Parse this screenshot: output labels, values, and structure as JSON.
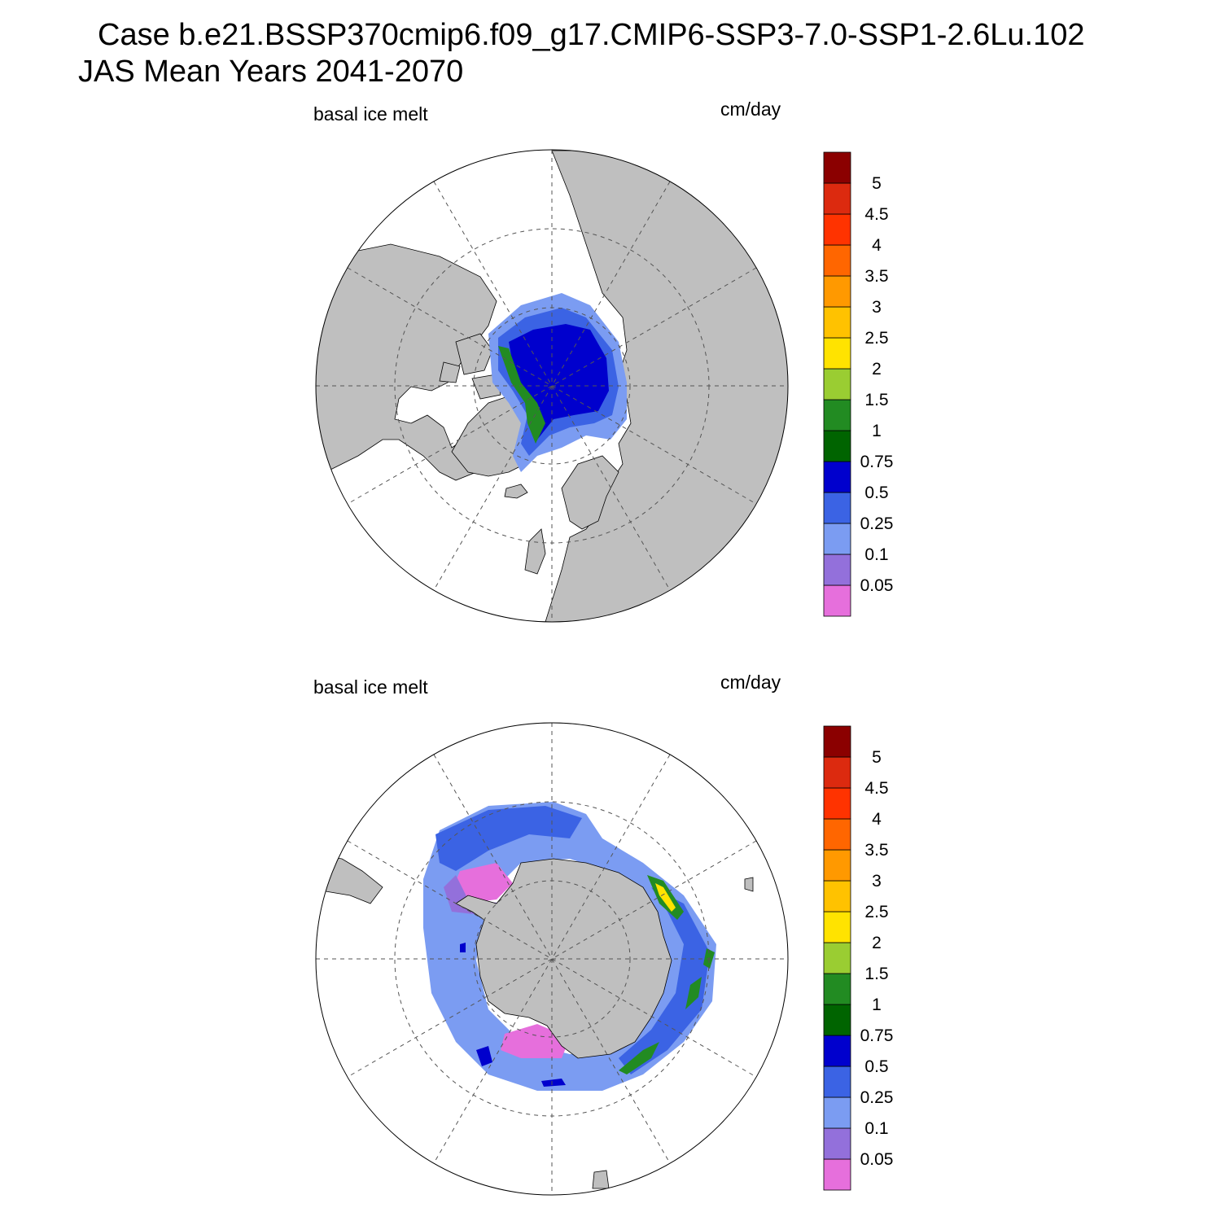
{
  "title": {
    "line1": "Case b.e21.BSSP370cmip6.f09_g17.CMIP6-SSP3-7.0-SSP1-2.6Lu.102",
    "line2": "JAS Mean   Years 2041-2070"
  },
  "colors": {
    "land": "#bfbfbf",
    "ocean": "#ffffff",
    "levels": [
      "#e66fdc",
      "#9370db",
      "#7b9cf2",
      "#3b63e4",
      "#0000cd",
      "#006400",
      "#228b22",
      "#9acd32",
      "#ffe300",
      "#ffc200",
      "#ff9900",
      "#ff6600",
      "#ff3300",
      "#dc2a0f",
      "#8b0000"
    ]
  },
  "chart_data": [
    {
      "type": "heatmap",
      "projection": "north polar stereographic",
      "left_label": "basal ice melt",
      "right_label": "cm/day",
      "colorbar_ticks": [
        "0.05",
        "0.1",
        "0.25",
        "0.5",
        "0.75",
        "1",
        "1.5",
        "2",
        "2.5",
        "3",
        "3.5",
        "4",
        "4.5",
        "5"
      ],
      "grid": true
    },
    {
      "type": "heatmap",
      "projection": "south polar stereographic",
      "left_label": "basal ice melt",
      "right_label": "cm/day",
      "colorbar_ticks": [
        "0.05",
        "0.1",
        "0.25",
        "0.5",
        "0.75",
        "1",
        "1.5",
        "2",
        "2.5",
        "3",
        "3.5",
        "4",
        "4.5",
        "5"
      ],
      "grid": true
    }
  ]
}
